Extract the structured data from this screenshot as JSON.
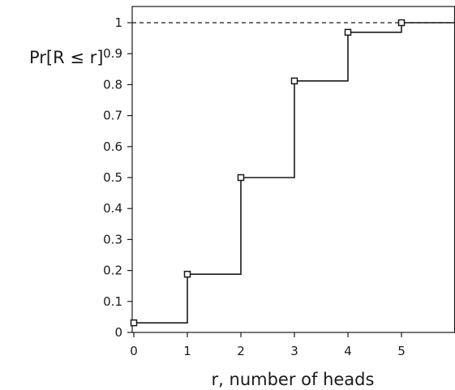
{
  "chart_data": {
    "type": "line",
    "step": "post",
    "title": "",
    "xlabel": "r, number of heads",
    "ylabel": "Pr[R ≤ r]",
    "xlim": [
      -0.5,
      5.5
    ],
    "ylim": [
      0,
      1.05
    ],
    "x_ticks": [
      0,
      1,
      2,
      3,
      4,
      5
    ],
    "y_ticks": [
      0,
      0.1,
      0.2,
      0.3,
      0.4,
      0.5,
      0.6,
      0.7,
      0.8,
      0.9,
      1
    ],
    "x_tick_labels": [
      "0",
      "1",
      "2",
      "3",
      "4",
      "5"
    ],
    "y_tick_labels": [
      "0",
      "0.1",
      "0.2",
      "0.3",
      "0.4",
      "0.5",
      "0.6",
      "0.7",
      "0.8",
      "0.9",
      "1"
    ],
    "grid": false,
    "legend": "none",
    "series": [
      {
        "x": [
          0,
          1,
          2,
          3,
          4,
          5
        ],
        "values": [
          0.031,
          0.188,
          0.5,
          0.812,
          0.969,
          1.0
        ],
        "marker": "square",
        "color": "#1a1a1a"
      }
    ],
    "reference_lines": [
      {
        "axis": "y",
        "value": 1.0,
        "style": "dashed",
        "color": "#1a1a1a"
      }
    ]
  }
}
